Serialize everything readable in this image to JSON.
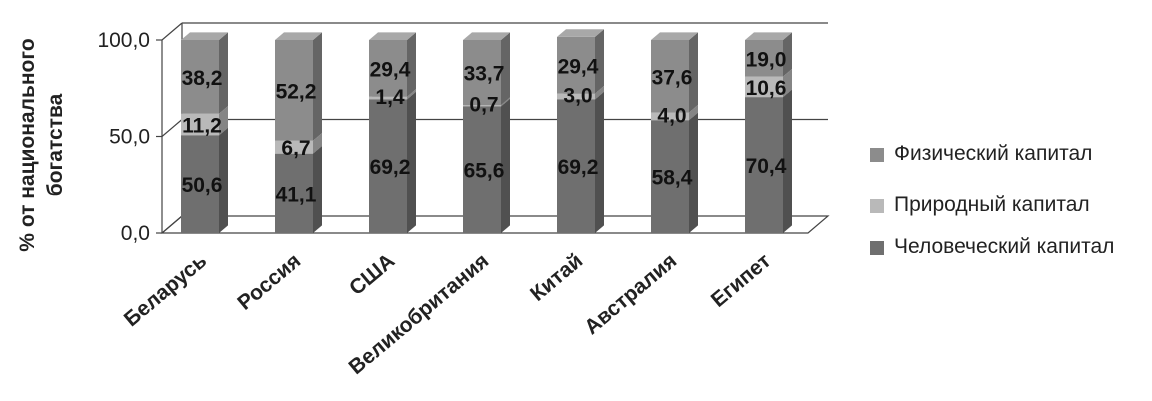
{
  "chart_data": {
    "type": "bar",
    "stacked": true,
    "three_d": true,
    "categories": [
      "Беларусь",
      "Россия",
      "США",
      "Великобритания",
      "Китай",
      "Австралия",
      "Египет"
    ],
    "series": [
      {
        "name": "Человеческий капитал",
        "values": [
          50.6,
          41.1,
          69.2,
          65.6,
          69.2,
          58.4,
          70.4
        ],
        "color": "#6f6f6f"
      },
      {
        "name": "Природный капитал",
        "values": [
          11.2,
          6.7,
          1.4,
          0.7,
          3.0,
          4.0,
          10.6
        ],
        "color": "#b9b9b9"
      },
      {
        "name": "Физический капитал",
        "values": [
          38.2,
          52.2,
          29.4,
          33.7,
          29.4,
          37.6,
          19.0
        ],
        "color": "#8c8c8c"
      }
    ],
    "data_labels": {
      "Человеческий капитал": [
        "50,6",
        "41,1",
        "69,2",
        "65,6",
        "69,2",
        "58,4",
        "70,4"
      ],
      "Природный капитал": [
        "11,2",
        "6,7",
        "1,4",
        "0,7",
        "3,0",
        "4,0",
        "10,6"
      ],
      "Физический капитал": [
        "38,2",
        "52,2",
        "29,4",
        "33,7",
        "29,4",
        "37,6",
        "19,0"
      ]
    },
    "yticks": [
      "0,0",
      "50,0",
      "100,0"
    ],
    "ytick_values": [
      0,
      50,
      100
    ],
    "ylim": [
      0,
      100
    ],
    "ylabel_lines": [
      "% от национального",
      "богатства"
    ],
    "xlabel": "",
    "title": "",
    "legend_position": "right",
    "legend_order": [
      "Физический капитал",
      "Природный капитал",
      "Человеческий капитал"
    ],
    "grid": true
  }
}
